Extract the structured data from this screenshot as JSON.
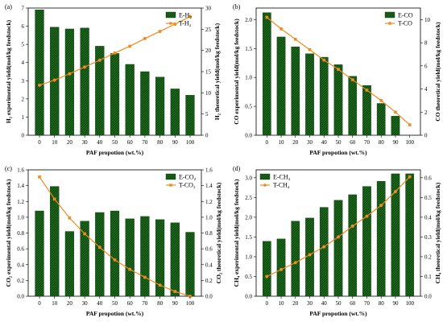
{
  "chart_data": [
    {
      "type": "bar",
      "panel_label": "(a)",
      "categories": [
        "0",
        "10",
        "20",
        "30",
        "40",
        "50",
        "60",
        "70",
        "80",
        "90",
        "100"
      ],
      "xlabel": "PAF propotion (wt.%)",
      "ylabel": "H₂ experimental yield(mol/kg feedstock)",
      "ylabel2": "H₂ theoretical yield(mol/kg feedstock)",
      "ylim": [
        0,
        7
      ],
      "yticks": [
        "0",
        "1",
        "2",
        "3",
        "4",
        "5",
        "6",
        "7"
      ],
      "ylim2": [
        0,
        30
      ],
      "yticks2": [
        "0",
        "5",
        "10",
        "15",
        "20",
        "25",
        "30"
      ],
      "legend_position": "top-right",
      "series": [
        {
          "name": "E-H₂",
          "kind": "bar",
          "axis": "left",
          "values": [
            6.9,
            5.95,
            5.85,
            5.9,
            4.9,
            4.5,
            3.9,
            3.5,
            3.2,
            2.55,
            2.2
          ]
        },
        {
          "name": "T-H₂",
          "kind": "line",
          "axis": "right",
          "values": [
            11.8,
            13.0,
            14.5,
            16.1,
            17.7,
            19.4,
            21.0,
            22.8,
            24.5,
            26.2,
            28.0
          ]
        }
      ]
    },
    {
      "type": "bar",
      "panel_label": "(b)",
      "categories": [
        "0",
        "10",
        "20",
        "30",
        "40",
        "50",
        "60",
        "70",
        "80",
        "90",
        "100"
      ],
      "xlabel": "PAF propotion (wt.%)",
      "ylabel": "CO experimental yield(mol/kg feedstock)",
      "ylabel2": "CO theoretical yield(mol/kg feedstock)",
      "ylim": [
        0,
        2.2
      ],
      "yticks": [
        "0.0",
        "0.5",
        "1.0",
        "1.5",
        "2.0"
      ],
      "ylim2": [
        0,
        11
      ],
      "yticks2": [
        "0",
        "2",
        "4",
        "6",
        "8",
        "10"
      ],
      "legend_position": "top-right",
      "series": [
        {
          "name": "E-CO",
          "kind": "bar",
          "axis": "left",
          "values": [
            2.12,
            1.7,
            1.53,
            1.41,
            1.35,
            1.22,
            1.02,
            0.86,
            0.55,
            0.33,
            0.0
          ]
        },
        {
          "name": "T-CO",
          "kind": "line",
          "axis": "right",
          "values": [
            10.2,
            9.2,
            8.3,
            7.4,
            6.5,
            5.7,
            4.8,
            3.9,
            3.0,
            2.0,
            0.9
          ]
        }
      ]
    },
    {
      "type": "bar",
      "panel_label": "(c)",
      "categories": [
        "0",
        "10",
        "20",
        "30",
        "40",
        "50",
        "60",
        "70",
        "80",
        "90",
        "100"
      ],
      "xlabel": "PAF propotion (wt.%)",
      "ylabel": "CO₂ experimental yield(mol/kg feedstock)",
      "ylabel2": "CO₂ theoretical yield(mol/kg feedstock)",
      "ylim": [
        0,
        1.6
      ],
      "yticks": [
        "0.0",
        "0.2",
        "0.4",
        "0.6",
        "0.8",
        "1.0",
        "1.2",
        "1.4",
        "1.6"
      ],
      "ylim2": [
        0,
        1.6
      ],
      "yticks2": [
        "0.0",
        "0.2",
        "0.4",
        "0.6",
        "0.8",
        "1.0",
        "1.2",
        "1.4",
        "1.6"
      ],
      "legend_position": "top-right",
      "series": [
        {
          "name": "E-CO₂",
          "kind": "bar",
          "axis": "left",
          "values": [
            1.08,
            1.39,
            0.82,
            0.95,
            1.06,
            1.08,
            0.98,
            1.01,
            0.97,
            0.93,
            0.81
          ]
        },
        {
          "name": "T-CO₂",
          "kind": "line",
          "axis": "right",
          "values": [
            1.51,
            1.23,
            0.99,
            0.79,
            0.62,
            0.46,
            0.34,
            0.24,
            0.14,
            0.06,
            0.0
          ]
        }
      ]
    },
    {
      "type": "bar",
      "panel_label": "(d)",
      "categories": [
        "0",
        "10",
        "20",
        "30",
        "40",
        "50",
        "60",
        "70",
        "80",
        "90",
        "100"
      ],
      "xlabel": "PAF propotion (wt.%)",
      "ylabel": "CH₄ experimental yield(mol/kg feedstock)",
      "ylabel2": "CH₄ theoretical yield(mol/kg feedstock)",
      "ylim": [
        0,
        3.2
      ],
      "yticks": [
        "0.0",
        "0.5",
        "1.0",
        "1.5",
        "2.0",
        "2.5",
        "3.0"
      ],
      "ylim2": [
        0,
        0.64
      ],
      "yticks2": [
        "0.0",
        "0.1",
        "0.2",
        "0.3",
        "0.4",
        "0.5",
        "0.6"
      ],
      "legend_position": "top-left",
      "series": [
        {
          "name": "E-CH₄",
          "kind": "bar",
          "axis": "left",
          "values": [
            1.39,
            1.45,
            1.9,
            1.98,
            2.25,
            2.43,
            2.57,
            2.78,
            2.91,
            3.1,
            3.1
          ]
        },
        {
          "name": "T-CH₄",
          "kind": "line",
          "axis": "right",
          "values": [
            0.1,
            0.135,
            0.17,
            0.21,
            0.25,
            0.3,
            0.355,
            0.405,
            0.46,
            0.53,
            0.605
          ]
        }
      ]
    }
  ],
  "colors": {
    "bar_fill": "#1f6e1f",
    "bar_hatch": "#0a3d0a",
    "line": "#f28a1e",
    "axis": "#000000"
  }
}
